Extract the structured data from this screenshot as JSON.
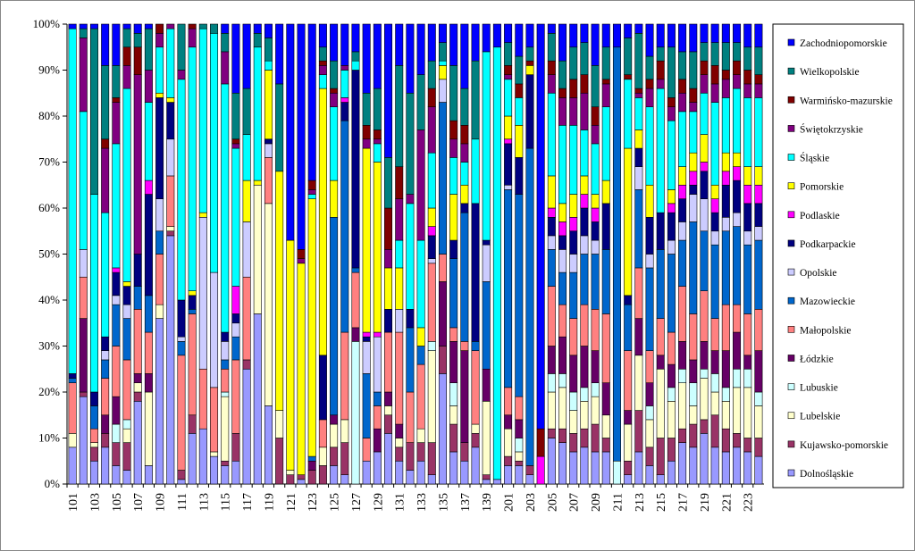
{
  "chart_data": {
    "type": "stacked_bar_100",
    "categories": [
      "101",
      null,
      "103",
      null,
      "105",
      null,
      "107",
      null,
      "109",
      null,
      "111",
      null,
      "113",
      null,
      "115",
      null,
      "117",
      null,
      "119",
      null,
      "121",
      null,
      "123",
      null,
      "125",
      null,
      "127",
      null,
      "129",
      null,
      "131",
      null,
      "133",
      null,
      "135",
      null,
      "137",
      null,
      "139",
      null,
      "201",
      null,
      "203",
      null,
      "205",
      null,
      "207",
      null,
      "209",
      null,
      "211",
      null,
      "213",
      null,
      "215",
      null,
      "217",
      null,
      "219",
      null,
      "221",
      null,
      "223",
      null
    ],
    "ylim": [
      0,
      100
    ],
    "yticks": [
      {
        "value": 0,
        "label": "0%"
      },
      {
        "value": 10,
        "label": "10%"
      },
      {
        "value": 20,
        "label": "20%"
      },
      {
        "value": 30,
        "label": "30%"
      },
      {
        "value": 40,
        "label": "40%"
      },
      {
        "value": 50,
        "label": "50%"
      },
      {
        "value": 60,
        "label": "60%"
      },
      {
        "value": 70,
        "label": "70%"
      },
      {
        "value": 80,
        "label": "80%"
      },
      {
        "value": 90,
        "label": "90%"
      },
      {
        "value": 100,
        "label": "100%"
      }
    ],
    "grid": false,
    "legend": "right",
    "series": [
      {
        "name": "Dolnośląskie",
        "color": "#9999ff",
        "values": [
          8,
          19,
          5,
          8,
          4,
          3,
          18,
          4,
          36,
          54,
          1,
          11,
          12,
          6,
          4,
          5,
          25,
          37,
          17,
          0,
          0,
          1,
          0,
          0,
          4,
          2,
          0,
          5,
          7,
          11,
          5,
          3,
          5,
          2,
          24,
          7,
          5,
          8,
          1,
          1,
          4,
          4,
          2,
          0,
          10,
          9,
          7,
          8,
          7,
          7,
          0,
          2,
          7,
          4,
          2,
          5,
          9,
          8,
          11,
          8,
          7,
          8,
          7,
          6
        ]
      },
      {
        "name": "Kujawsko-pomorskie",
        "color": "#993366",
        "values": [
          0,
          1,
          3,
          3,
          5,
          6,
          2,
          0,
          0,
          1,
          2,
          4,
          0,
          0,
          1,
          6,
          2,
          0,
          0,
          10,
          2,
          1,
          3,
          4,
          4,
          7,
          0,
          0,
          0,
          4,
          3,
          6,
          4,
          7,
          6,
          6,
          4,
          3,
          1,
          0,
          2,
          1,
          2,
          0,
          2,
          3,
          4,
          4,
          6,
          3,
          0,
          3,
          9,
          4,
          8,
          5,
          3,
          5,
          3,
          7,
          5,
          3,
          3,
          4
        ]
      },
      {
        "name": "Lubelskie",
        "color": "#ffffcc",
        "values": [
          3,
          0,
          1,
          0,
          0,
          3,
          2,
          16,
          3,
          1,
          0,
          0,
          0,
          1,
          14,
          0,
          0,
          28,
          44,
          6,
          1,
          0,
          0,
          4,
          5,
          5,
          0,
          0,
          0,
          2,
          2,
          0,
          3,
          20,
          0,
          4,
          0,
          2,
          16,
          0,
          6,
          2,
          0,
          0,
          8,
          9,
          5,
          6,
          6,
          5,
          0,
          8,
          12,
          6,
          15,
          8,
          10,
          4,
          9,
          5,
          6,
          10,
          11,
          7
        ]
      },
      {
        "name": "Lubuskie",
        "color": "#ccffff",
        "values": [
          0,
          0,
          0,
          0,
          4,
          2,
          0,
          0,
          0,
          0,
          0,
          0,
          0,
          0,
          1,
          0,
          0,
          0,
          0,
          0,
          0,
          0,
          0,
          0,
          0,
          0,
          31,
          0,
          0,
          0,
          0,
          0,
          0,
          2,
          0,
          5,
          0,
          0,
          0,
          0,
          0,
          3,
          0,
          0,
          4,
          3,
          4,
          3,
          3,
          0,
          5,
          0,
          0,
          3,
          0,
          3,
          3,
          5,
          2,
          4,
          3,
          4,
          4,
          3
        ]
      },
      {
        "name": "Łódzkie",
        "color": "#660066",
        "values": [
          0,
          16,
          0,
          4,
          6,
          0,
          2,
          4,
          0,
          0,
          0,
          0,
          0,
          0,
          0,
          0,
          0,
          0,
          0,
          0,
          0,
          0,
          2,
          0,
          2,
          0,
          3,
          0,
          5,
          3,
          3,
          0,
          0,
          0,
          14,
          9,
          20,
          0,
          7,
          0,
          3,
          4,
          0,
          0,
          6,
          8,
          8,
          9,
          7,
          7,
          0,
          3,
          8,
          5,
          3,
          5,
          6,
          5,
          6,
          5,
          8,
          8,
          3,
          9
        ]
      },
      {
        "name": "Małopolskie",
        "color": "#ff8080",
        "values": [
          11,
          9,
          3,
          8,
          11,
          13,
          14,
          9,
          11,
          11,
          25,
          22,
          13,
          14,
          5,
          16,
          18,
          0,
          10,
          0,
          0,
          0,
          0,
          6,
          0,
          19,
          12,
          5,
          5,
          13,
          20,
          11,
          14,
          17,
          6,
          3,
          2,
          16,
          0,
          0,
          6,
          5,
          0,
          0,
          13,
          7,
          8,
          9,
          9,
          15,
          0,
          13,
          11,
          7,
          8,
          7,
          12,
          10,
          11,
          7,
          10,
          6,
          9,
          9
        ]
      },
      {
        "name": "Mazowieckie",
        "color": "#0066cc",
        "values": [
          1,
          0,
          5,
          4,
          9,
          9,
          5,
          8,
          5,
          0,
          3,
          1,
          0,
          0,
          2,
          5,
          0,
          0,
          0,
          0,
          0,
          0,
          1,
          0,
          43,
          46,
          1,
          14,
          3,
          0,
          0,
          14,
          4,
          0,
          33,
          15,
          28,
          2,
          19,
          0,
          43,
          44,
          69,
          0,
          8,
          7,
          10,
          11,
          12,
          14,
          90,
          10,
          17,
          18,
          15,
          17,
          10,
          20,
          13,
          16,
          16,
          17,
          15,
          15
        ]
      },
      {
        "name": "Opolskie",
        "color": "#ccccff",
        "values": [
          0,
          6,
          0,
          2,
          2,
          3,
          0,
          0,
          7,
          8,
          1,
          0,
          33,
          25,
          4,
          3,
          12,
          0,
          3,
          0,
          0,
          0,
          0,
          0,
          0,
          0,
          0,
          7,
          12,
          0,
          5,
          0,
          0,
          1,
          5,
          0,
          0,
          0,
          8,
          0,
          1,
          0,
          0,
          0,
          3,
          5,
          4,
          4,
          3,
          0,
          0,
          0,
          5,
          3,
          0,
          3,
          4,
          6,
          7,
          3,
          3,
          3,
          3,
          3
        ]
      },
      {
        "name": "Podkarpackie",
        "color": "#000080",
        "values": [
          1,
          0,
          3,
          3,
          5,
          4,
          7,
          22,
          22,
          8,
          8,
          3,
          0,
          0,
          2,
          2,
          0,
          0,
          1,
          0,
          0,
          0,
          0,
          14,
          0,
          4,
          43,
          1,
          0,
          5,
          0,
          4,
          0,
          5,
          0,
          4,
          2,
          30,
          1,
          0,
          9,
          8,
          16,
          0,
          4,
          3,
          5,
          6,
          4,
          10,
          0,
          2,
          4,
          8,
          8,
          6,
          5,
          2,
          6,
          4,
          7,
          7,
          6,
          5
        ]
      },
      {
        "name": "Podlaskie",
        "color": "#ff00ff",
        "values": [
          0,
          0,
          0,
          0,
          1,
          0,
          0,
          3,
          0,
          0,
          0,
          0,
          0,
          0,
          0,
          6,
          0,
          0,
          0,
          0,
          0,
          0,
          0,
          0,
          0,
          1,
          0,
          1,
          1,
          0,
          0,
          0,
          0,
          2,
          0,
          0,
          0,
          0,
          0,
          0,
          1,
          0,
          0,
          6,
          2,
          3,
          3,
          3,
          3,
          0,
          0,
          0,
          0,
          0,
          0,
          2,
          3,
          3,
          2,
          3,
          3,
          3,
          4,
          4
        ]
      },
      {
        "name": "Pomorskie",
        "color": "#ffff00",
        "values": [
          0,
          0,
          0,
          0,
          0,
          1,
          0,
          0,
          1,
          1,
          0,
          1,
          1,
          0,
          0,
          0,
          9,
          1,
          15,
          52,
          50,
          46,
          56,
          58,
          8,
          0,
          0,
          40,
          37,
          9,
          9,
          0,
          4,
          4,
          3,
          10,
          4,
          0,
          0,
          0,
          5,
          7,
          2,
          0,
          7,
          4,
          5,
          4,
          3,
          5,
          0,
          32,
          4,
          7,
          0,
          3,
          4,
          4,
          6,
          3,
          4,
          3,
          4,
          4
        ]
      },
      {
        "name": "Śląskie",
        "color": "#00ffff",
        "values": [
          75,
          30,
          43,
          27,
          27,
          42,
          0,
          17,
          10,
          15,
          48,
          53,
          40,
          52,
          54,
          30,
          10,
          29,
          2,
          0,
          0,
          0,
          1,
          3,
          16,
          6,
          2,
          0,
          4,
          0,
          6,
          23,
          19,
          12,
          1,
          8,
          5,
          14,
          41,
          94,
          8,
          6,
          0,
          0,
          18,
          17,
          15,
          10,
          11,
          16,
          0,
          15,
          7,
          17,
          27,
          15,
          12,
          9,
          9,
          18,
          12,
          14,
          15,
          15
        ]
      },
      {
        "name": "Świętokrzyskie",
        "color": "#800080",
        "values": [
          0,
          16,
          0,
          14,
          9,
          5,
          39,
          7,
          3,
          1,
          2,
          4,
          0,
          0,
          7,
          1,
          0,
          0,
          0,
          0,
          0,
          1,
          1,
          2,
          3,
          1,
          0,
          2,
          1,
          4,
          9,
          2,
          24,
          10,
          0,
          4,
          4,
          0,
          0,
          0,
          1,
          0,
          0,
          0,
          4,
          6,
          6,
          8,
          4,
          5,
          0,
          0,
          1,
          4,
          2,
          3,
          4,
          2,
          4,
          4,
          4,
          3,
          3,
          3
        ]
      },
      {
        "name": "Warmińsko-mazurskie",
        "color": "#800000",
        "values": [
          0,
          0,
          0,
          2,
          1,
          4,
          6,
          0,
          2,
          0,
          0,
          1,
          0,
          0,
          0,
          1,
          0,
          0,
          0,
          0,
          0,
          2,
          2,
          1,
          1,
          0,
          0,
          3,
          2,
          9,
          7,
          0,
          0,
          4,
          0,
          4,
          4,
          0,
          0,
          0,
          2,
          3,
          1,
          6,
          3,
          2,
          4,
          4,
          4,
          1,
          0,
          1,
          1,
          2,
          4,
          2,
          3,
          3,
          3,
          4,
          2,
          3,
          3,
          2
        ]
      },
      {
        "name": "Wielkopolskie",
        "color": "#008080",
        "values": [
          0,
          2,
          36,
          16,
          7,
          4,
          3,
          9,
          0,
          0,
          10,
          0,
          1,
          2,
          4,
          10,
          10,
          3,
          5,
          19,
          0,
          0,
          0,
          3,
          6,
          0,
          2,
          7,
          9,
          11,
          22,
          22,
          12,
          6,
          4,
          12,
          8,
          17,
          0,
          0,
          5,
          6,
          3,
          0,
          6,
          6,
          7,
          7,
          9,
          7,
          0,
          8,
          12,
          5,
          3,
          11,
          6,
          8,
          4,
          5,
          6,
          4,
          5,
          6
        ]
      },
      {
        "name": "Zachodniopomorskie",
        "color": "#0000ff",
        "values": [
          1,
          1,
          1,
          9,
          9,
          1,
          2,
          1,
          0,
          0,
          0,
          0,
          0,
          0,
          2,
          15,
          14,
          2,
          3,
          13,
          47,
          49,
          34,
          5,
          8,
          9,
          6,
          15,
          14,
          29,
          9,
          15,
          11,
          8,
          4,
          9,
          14,
          8,
          6,
          5,
          4,
          7,
          5,
          88,
          2,
          8,
          5,
          4,
          9,
          5,
          5,
          3,
          2,
          7,
          5,
          5,
          6,
          6,
          4,
          4,
          4,
          4,
          5,
          5
        ]
      }
    ]
  }
}
